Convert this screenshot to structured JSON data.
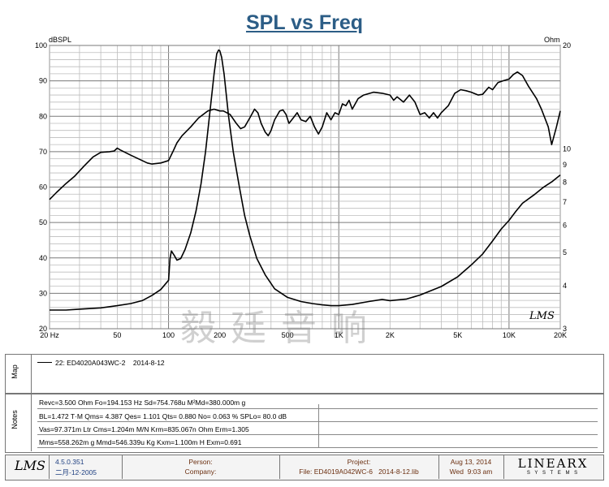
{
  "chart_data": {
    "type": "line",
    "title": "SPL vs Freq",
    "xlabel": "",
    "ylabel": "dBSPL",
    "y2label": "Ohm",
    "x_scale": "log",
    "xlim": [
      20,
      20000
    ],
    "ylim": [
      20,
      100
    ],
    "y2lim": [
      3,
      20
    ],
    "x_ticks": [
      {
        "value": 20,
        "label": "20 Hz"
      },
      {
        "value": 50,
        "label": "50"
      },
      {
        "value": 100,
        "label": "100"
      },
      {
        "value": 200,
        "label": "200"
      },
      {
        "value": 500,
        "label": "500"
      },
      {
        "value": 1000,
        "label": "1K"
      },
      {
        "value": 2000,
        "label": "2K"
      },
      {
        "value": 5000,
        "label": "5K"
      },
      {
        "value": 10000,
        "label": "10K"
      },
      {
        "value": 20000,
        "label": "20K"
      }
    ],
    "y_ticks": [
      "100",
      "90",
      "80",
      "70",
      "60",
      "50",
      "40",
      "30",
      "20"
    ],
    "y2_ticks": [
      {
        "value": 20,
        "label": "20"
      },
      {
        "value": 10,
        "label": "10"
      },
      {
        "value": 9,
        "label": "9"
      },
      {
        "value": 8,
        "label": "8"
      },
      {
        "value": 7,
        "label": "7"
      },
      {
        "value": 6,
        "label": "6"
      },
      {
        "value": 5,
        "label": "5"
      },
      {
        "value": 4,
        "label": "4"
      },
      {
        "value": 3,
        "label": "3"
      }
    ],
    "series": [
      {
        "name": "SPL",
        "axis": "left",
        "points": [
          [
            20,
            56.5
          ],
          [
            22,
            58.5
          ],
          [
            25,
            61
          ],
          [
            28,
            63
          ],
          [
            32,
            66
          ],
          [
            36,
            68.5
          ],
          [
            40,
            69.8
          ],
          [
            45,
            70
          ],
          [
            48,
            70.2
          ],
          [
            50,
            71
          ],
          [
            52,
            70.5
          ],
          [
            60,
            69
          ],
          [
            70,
            67.5
          ],
          [
            75,
            66.8
          ],
          [
            80,
            66.5
          ],
          [
            90,
            66.8
          ],
          [
            100,
            67.5
          ],
          [
            106,
            70
          ],
          [
            112,
            72.5
          ],
          [
            120,
            74.5
          ],
          [
            135,
            77
          ],
          [
            150,
            79.5
          ],
          [
            170,
            81.5
          ],
          [
            185,
            82
          ],
          [
            200,
            81.5
          ],
          [
            210,
            81.5
          ],
          [
            230,
            80.5
          ],
          [
            250,
            78
          ],
          [
            265,
            76.5
          ],
          [
            280,
            77
          ],
          [
            300,
            79.5
          ],
          [
            320,
            82
          ],
          [
            335,
            81
          ],
          [
            350,
            78
          ],
          [
            370,
            75.5
          ],
          [
            385,
            74.5
          ],
          [
            400,
            76
          ],
          [
            420,
            79
          ],
          [
            450,
            81.5
          ],
          [
            470,
            81.8
          ],
          [
            490,
            80.5
          ],
          [
            510,
            78
          ],
          [
            540,
            79.5
          ],
          [
            570,
            81
          ],
          [
            600,
            79
          ],
          [
            640,
            78.5
          ],
          [
            680,
            80
          ],
          [
            720,
            77
          ],
          [
            760,
            75
          ],
          [
            800,
            77
          ],
          [
            850,
            81
          ],
          [
            900,
            79
          ],
          [
            950,
            81
          ],
          [
            1000,
            80.5
          ],
          [
            1050,
            83.5
          ],
          [
            1100,
            83
          ],
          [
            1150,
            84.5
          ],
          [
            1200,
            82
          ],
          [
            1300,
            85
          ],
          [
            1400,
            86
          ],
          [
            1600,
            86.8
          ],
          [
            1800,
            86.5
          ],
          [
            2000,
            86
          ],
          [
            2100,
            84.5
          ],
          [
            2200,
            85.5
          ],
          [
            2400,
            84
          ],
          [
            2600,
            86
          ],
          [
            2800,
            84
          ],
          [
            3000,
            80.5
          ],
          [
            3200,
            81
          ],
          [
            3400,
            79.5
          ],
          [
            3600,
            81
          ],
          [
            3800,
            79.5
          ],
          [
            4000,
            81
          ],
          [
            4400,
            83
          ],
          [
            4800,
            86.5
          ],
          [
            5200,
            87.5
          ],
          [
            5600,
            87.2
          ],
          [
            6000,
            86.8
          ],
          [
            6600,
            86
          ],
          [
            7000,
            86.2
          ],
          [
            7600,
            88.2
          ],
          [
            8000,
            87.5
          ],
          [
            8600,
            89.5
          ],
          [
            9200,
            90
          ],
          [
            10000,
            90.5
          ],
          [
            10600,
            91.8
          ],
          [
            11200,
            92.5
          ],
          [
            12000,
            91.5
          ],
          [
            13000,
            88.5
          ],
          [
            14500,
            85
          ],
          [
            15500,
            82
          ],
          [
            17000,
            77
          ],
          [
            17800,
            72
          ],
          [
            19000,
            77
          ],
          [
            20000,
            81.5
          ]
        ]
      },
      {
        "name": "Impedance",
        "axis": "right",
        "points": [
          [
            20,
            3.4
          ],
          [
            25,
            3.4
          ],
          [
            30,
            3.42
          ],
          [
            40,
            3.45
          ],
          [
            50,
            3.5
          ],
          [
            60,
            3.55
          ],
          [
            70,
            3.62
          ],
          [
            80,
            3.75
          ],
          [
            90,
            3.9
          ],
          [
            100,
            4.15
          ],
          [
            102,
            4.8
          ],
          [
            104,
            5.05
          ],
          [
            108,
            4.9
          ],
          [
            112,
            4.75
          ],
          [
            118,
            4.8
          ],
          [
            125,
            5.1
          ],
          [
            135,
            5.7
          ],
          [
            145,
            6.6
          ],
          [
            155,
            7.9
          ],
          [
            165,
            9.8
          ],
          [
            175,
            12.8
          ],
          [
            185,
            16.5
          ],
          [
            192,
            18.9
          ],
          [
            197,
            19.4
          ],
          [
            200,
            19.3
          ],
          [
            205,
            18.5
          ],
          [
            212,
            16.5
          ],
          [
            225,
            12.5
          ],
          [
            240,
            9.8
          ],
          [
            260,
            7.8
          ],
          [
            280,
            6.4
          ],
          [
            300,
            5.6
          ],
          [
            330,
            4.8
          ],
          [
            370,
            4.3
          ],
          [
            420,
            3.92
          ],
          [
            500,
            3.7
          ],
          [
            600,
            3.6
          ],
          [
            700,
            3.55
          ],
          [
            800,
            3.52
          ],
          [
            900,
            3.5
          ],
          [
            1000,
            3.5
          ],
          [
            1200,
            3.53
          ],
          [
            1500,
            3.6
          ],
          [
            1800,
            3.65
          ],
          [
            2000,
            3.62
          ],
          [
            2500,
            3.66
          ],
          [
            3000,
            3.76
          ],
          [
            4000,
            3.98
          ],
          [
            5000,
            4.25
          ],
          [
            6000,
            4.6
          ],
          [
            7000,
            4.95
          ],
          [
            8000,
            5.4
          ],
          [
            9000,
            5.85
          ],
          [
            10000,
            6.2
          ],
          [
            11000,
            6.6
          ],
          [
            12000,
            6.95
          ],
          [
            14000,
            7.35
          ],
          [
            16000,
            7.75
          ],
          [
            18000,
            8.05
          ],
          [
            20000,
            8.4
          ]
        ]
      }
    ]
  },
  "labels": {
    "map": "Map",
    "notes": "Notes",
    "watermark": "毅廷音响",
    "lms_mark": "LMS"
  },
  "legend": {
    "entry": "22: ED4020A043WC-2    2014-8-12"
  },
  "notes": [
    "Revc=3.500 Ohm  Fo=194.153 Hz  Sd=754.768u M²Md=380.000m g",
    "BL=1.472 T·M  Qms= 4.387  Qes= 1.101  Qts= 0.880  No= 0.063 %  SPLo= 80.0 dB",
    "Vas=97.371m Ltr  Cms=1.204m M/N  Krm=835.067n Ohm  Erm=1.305",
    "Mms=558.262m g  Mmd=546.339u Kg  Kxm=1.100m H  Exm=0.691"
  ],
  "footer": {
    "logo": "LMS",
    "version": "4.5.0.351",
    "date": "二月-12-2005",
    "person_label": "Person:",
    "company_label": "Company:",
    "project_label": "Project:",
    "file": "File: ED4019A042WC-6   2014-8-12.lib",
    "date_line1": "Aug 13, 2014",
    "date_line2": "Wed  9:03 am",
    "brand": "LINEARX",
    "brand_sub": "S Y S T E M S"
  }
}
